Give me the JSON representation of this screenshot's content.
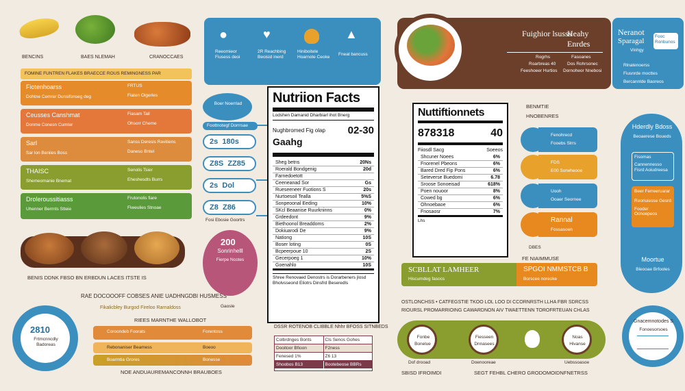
{
  "top_left_labels": [
    "BENCINS",
    "BAES NLEMAH",
    "CRANOCCAES"
  ],
  "header_band": "FOMINE FUNTREN FLAKES BRAECCE ROUS REMINGNESS PAR",
  "left_rows": [
    {
      "l1": "Fiotenhoarss",
      "l2": "Dohtne Cemrer Dunsifonseg deg",
      "r1": "FRTUS",
      "r2": "Fiaten Oigerles",
      "color": "#e58b2a"
    },
    {
      "l1": "Ceusses Canshmat",
      "l2": "Donme Conesn Cumter",
      "r1": "Fiasam Tail",
      "r2": "Ohsorr Cheme",
      "color": "#e4773a"
    },
    {
      "l1": "Sarl",
      "l2": "Sar lon Beniies Boss",
      "r1": "Sanss Deresis Ravitiens",
      "r2": "Daneso Bntel",
      "color": "#dd8c3e"
    },
    {
      "l1": "THAISC",
      "l2": "Shemeomanie Bnemat",
      "r1": "Senolis Tsier",
      "r2": "Eheshesdts Burrs",
      "color": "#8a9d2f"
    },
    {
      "l1": "Droleroussitiasss",
      "l2": "Uhenner Berrnts Stteie",
      "r1": "Frutonolis fiare",
      "r2": "Fiweulies Stnoae",
      "color": "#5a9a3b"
    }
  ],
  "under_bowls": "BENIS DDNK FBSO BN ERBDUN LACES ITSTE IS",
  "caption_a": "RAE DOCOOOFF COBSES ANIE UADHNGDBI HUSMESS",
  "caption_b": "Fikalicbley Burgod Fireloo Rarnaldoss",
  "round_badge": {
    "num": "2810",
    "text": "Frtmcnncdly Badoreas"
  },
  "orange_panel": {
    "title": "RIEES MARNTHE WALLOBOT",
    "rows": [
      {
        "l": "Coroondeb Foorats",
        "r": "Forentoss",
        "color": "#e08a3a"
      },
      {
        "l": "Rebonaniser Beamess",
        "r": "Boeoo",
        "color": "#dd8c3e"
      },
      {
        "l": "Boarmtia Grores",
        "r": "Bonesse",
        "color": "#9aa02a"
      }
    ],
    "footer": "NOE ANDUAUREMANCONNH BRAUBOES"
  },
  "blue_header": [
    {
      "label": "Reeomieor Fiusess deoi",
      "icon": "dog-icon"
    },
    {
      "label": "2R Reachbing Beoisid inerd",
      "icon": "heart-icon"
    },
    {
      "label": "Hiniboitele Hoarnote Ceoke",
      "icon": "squirrel-icon"
    },
    {
      "label": "Fneat bancuss",
      "icon": "cat-icon"
    }
  ],
  "mid_left_bubble": "Boer Noerrlad",
  "mid_left_stats": {
    "head": "Foottnotegf Dorrrsae",
    "rows": [
      {
        "a": "2s",
        "b": "180s"
      },
      {
        "a": "Z8S",
        "b": "ZZ85"
      },
      {
        "a": "2s",
        "b": "Dol"
      },
      {
        "a": "Z8",
        "b": "Z86"
      }
    ],
    "foot": "Fosi Ebosie Goortrs"
  },
  "pink_circle": {
    "num": "200",
    "text": "Sonrinhelll",
    "sub": "Fierpe Ncotes",
    "caption": "Gaosle"
  },
  "nf1": {
    "title": "Nutriion Facts",
    "l1": "Lodshen Damanid Dharbiarl ihot Bnerg",
    "serving_label": "Nughbromed Fig olap",
    "serving_val": "02-30",
    "cal_label": "Gaahg",
    "rows": [
      [
        "Sheg betns",
        "20Ns"
      ],
      [
        "Roerald Bondgenig",
        "20d"
      ],
      [
        "Farnedoetott",
        ""
      ],
      [
        "Ceeneanad Sor",
        "Gs"
      ],
      [
        "Rueseeneer Fuotions S",
        "20s"
      ],
      [
        "Nurtoesoil Tealla",
        "5%S"
      ],
      [
        "Sonpeoonal Eeding",
        "10%"
      ],
      [
        "SKcl Beaanise Ruurkninns",
        "0%"
      ],
      [
        "Grdeedont",
        "9%"
      ],
      [
        "Biethoonol Breaddoms",
        "2%"
      ],
      [
        "Dokiuarodi De",
        "9%"
      ],
      [
        "Nationg",
        "10S"
      ],
      [
        "Boser loting",
        "0S"
      ],
      [
        "Bcpeerpoue 10",
        "2S"
      ],
      [
        "Gecerpoeg 1",
        "10%"
      ],
      [
        "Goenahlo",
        "10S"
      ]
    ],
    "foot1": "Shree Renovaed Denostrs is Dorarbeners jlosd",
    "foot2": "Bholvsseond Eliotrs Dinsfrd Beseredls",
    "band": "DSSR ROTENOB CLIBBLE Nhhr BFOSS SITNBEDS"
  },
  "mini_table": {
    "head": [
      "Colbrdnges Borits",
      "Cls Senos Gohes"
    ],
    "rows": [
      [
        "Dooitoor Bfioon",
        "F2ness"
      ],
      [
        "Fenesed 1%",
        "Z6 13"
      ],
      [
        "Shoobos B13",
        "Bootebeose BBRs"
      ]
    ],
    "colors": [
      "#fff",
      "#e9dfd3",
      "#7a3a4a"
    ]
  },
  "brown_header": {
    "col1": "Fuighior lsusss",
    "col1_sub": [
      "Rogrhs",
      "Roarbreas 40"
    ],
    "col1_foot": "Feeshoeer Hurtios",
    "col2": "Heahy Enrdes",
    "col2_sub": [
      "Fasoanes",
      "Dos Rohrsonec"
    ],
    "col2_foot": "Dornoheor Nnebosi"
  },
  "blue_corner": {
    "a": "Neranot",
    "b": "Sparagal",
    "c": "Vinhgy",
    "d": "Rlnatenoerss",
    "e": "Fiusnrde mocttes",
    "f": "Bercannlde Baoreos",
    "badge": "Fooc Ronbunos"
  },
  "nf2": {
    "title": "Nuttiftionnets",
    "big_left": "878318",
    "big_right": "40",
    "sub_label": "Fiiosdl Sacg",
    "sub_right": "Soeeos",
    "rows": [
      [
        "Shcuner Noees",
        "6%"
      ],
      [
        "Fnorenel Pbeons",
        "6%"
      ],
      [
        "Bared Dred Fip Pons",
        "6%"
      ],
      [
        "Seteverse Buedomi",
        "6.78"
      ],
      [
        "Sroose Sonoeisad",
        "618%"
      ],
      [
        "Poen nouoor",
        "8%"
      ],
      [
        "Cowed bg",
        "6%"
      ],
      [
        "Ohnoebaoe",
        "6%"
      ],
      [
        "Fnosaosr",
        "7%"
      ]
    ],
    "foot": "Lhs"
  },
  "right_icons": {
    "head1": "BENMTIE",
    "head2": "HNOBENRES",
    "items": [
      {
        "a": "Fenohrecd",
        "b": "Fooebs Slrrs",
        "color": "#3b8fbf"
      },
      {
        "a": "FDS",
        "b": "E00 Sorwheooe",
        "color": "#e8a12a"
      },
      {
        "a": "Uooh",
        "b": "Ooaer Seornee",
        "color": "#3b8fbf"
      },
      {
        "a": "Rannal",
        "b": "Fossasoen",
        "color": "#e8891f"
      }
    ],
    "foot1": "DBES",
    "foot2": "FE NIAIMMUSE"
  },
  "right_column": {
    "top": "Hderdly Bdoss",
    "top_sub": "Beoaerese Boueds",
    "items": [
      "Fisomas",
      "Cannennesso Fisrd Aoiudreesa",
      "Beer Ferreeruarar",
      "Reoriuiesse Gesrd",
      "Fooder Ocnoepeos"
    ],
    "bottom": "Moortue",
    "bottom_sub": "Bleooae Brfooles"
  },
  "scrubbar": {
    "left": "SCBLLAT LAMHEER",
    "left_sub": "Hiscumdeg fasocs",
    "right": "SPGOI NMMSTCB B",
    "right_sub": "Borscee noreoke"
  },
  "bottom_caption": "OSTLONCHSS • CATFEGSTIE TKOO LOL LOO DI CCORNRSTH LLHA FBR SDRCSS",
  "bottom_caption2": "RIOURSL PROMARRIOING CAWARDNON AIV TWAETTENN TOROFRTEUAN CHLAS",
  "green_band": [
    {
      "a": "Fonbe",
      "b": "Bonelue"
    },
    {
      "a": "Fiesseen",
      "b": "Dnnasees"
    },
    {
      "a": "",
      "b": ""
    },
    {
      "a": "Noas",
      "b": "Hivanse"
    }
  ],
  "green_labels": [
    "Dof drooad",
    "Doenooreae",
    "Uebssoasoe"
  ],
  "bottom_footer_l": "SBISD IFROIMDI",
  "bottom_footer_r": "SEGT FEHBL CHERO GRODOMOIDNFNETRSS",
  "right_badge": {
    "a": "Gnacemnotodes S",
    "b": "Fonoesorsoes"
  },
  "colors": {
    "bg": "#f1ebe2",
    "blue": "#3b8fbf",
    "brown": "#6b3f2a",
    "orange": "#e8891f",
    "green": "#8a9d2f",
    "pink": "#b8567a"
  }
}
